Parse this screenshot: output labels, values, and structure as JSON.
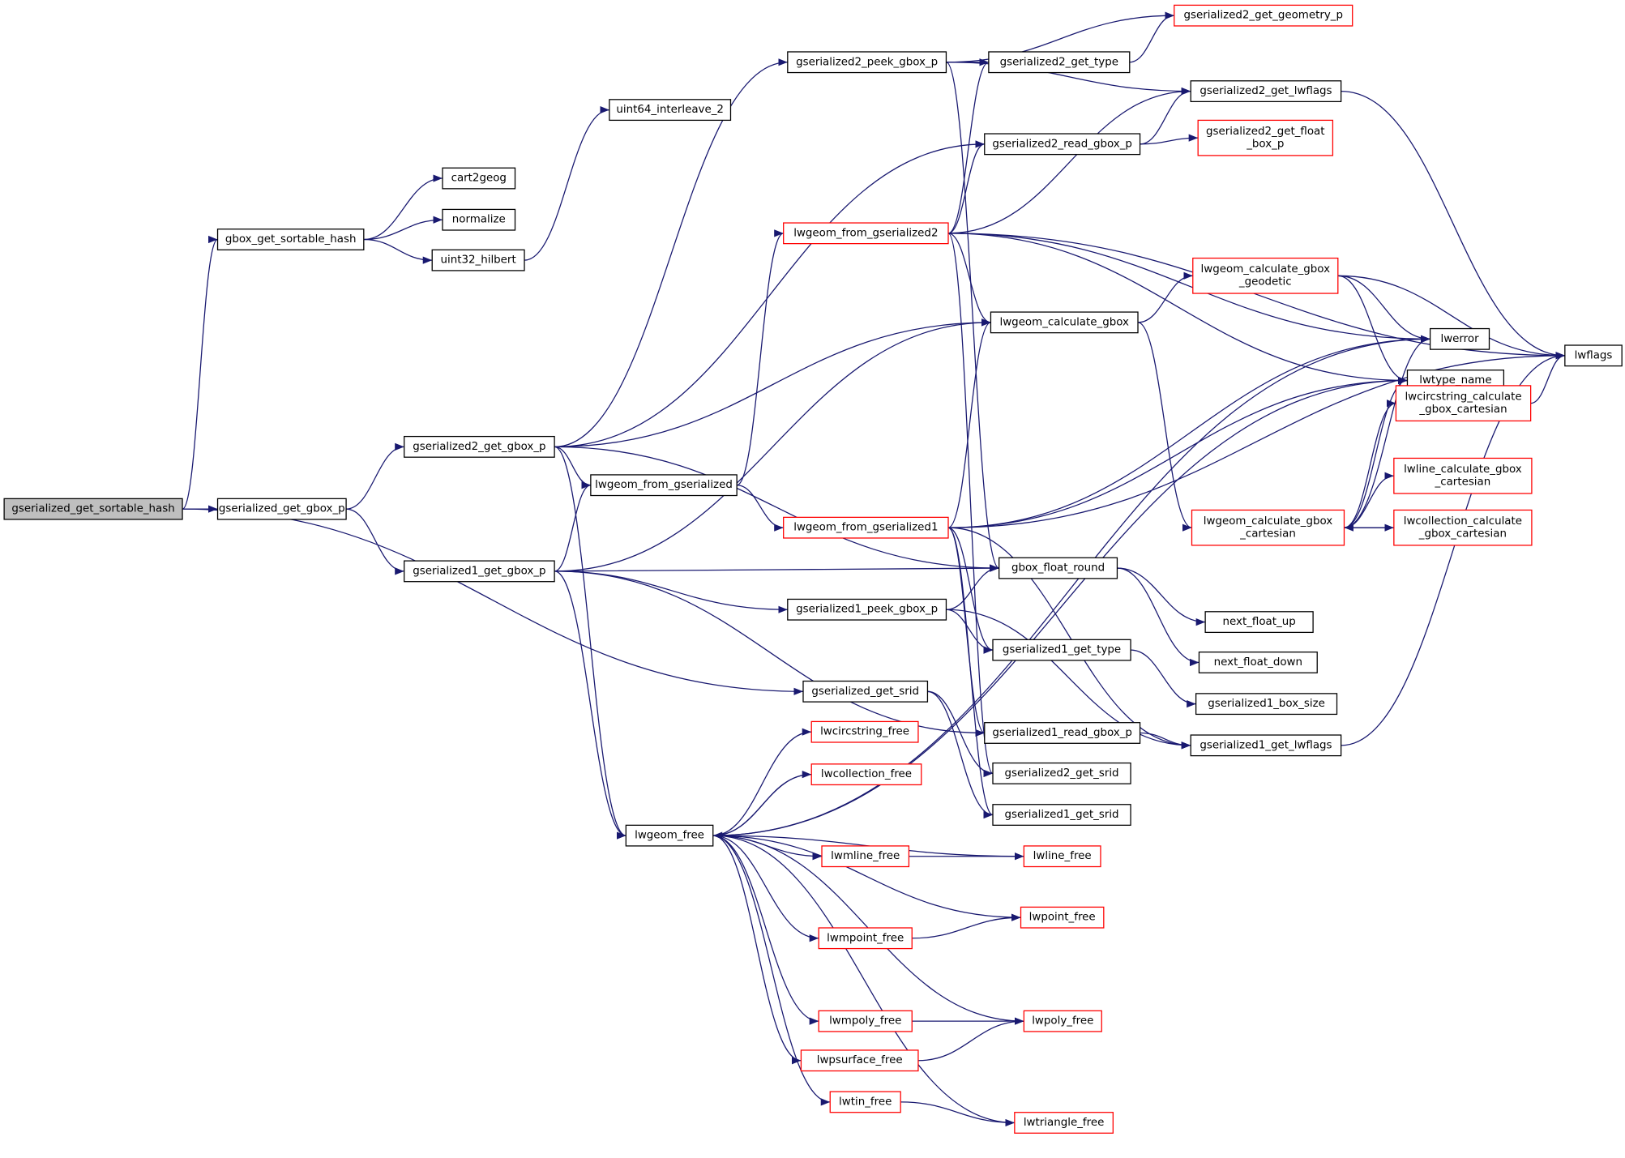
{
  "colors": {
    "edge": "#191970",
    "root_fill": "#bfbfbf",
    "truncated_border": "#ff0000",
    "node_border": "#000000"
  },
  "nodes": [
    {
      "id": "gserialized_get_sortable_hash",
      "lines": [
        "gserialized_get_sortable_hash"
      ],
      "style": "root"
    },
    {
      "id": "gserialized_get_gbox_p",
      "lines": [
        "gserialized_get_gbox_p"
      ],
      "style": "normal"
    },
    {
      "id": "gbox_get_sortable_hash",
      "lines": [
        "gbox_get_sortable_hash"
      ],
      "style": "normal"
    },
    {
      "id": "cart2geog",
      "lines": [
        "cart2geog"
      ],
      "style": "normal"
    },
    {
      "id": "normalize",
      "lines": [
        "normalize"
      ],
      "style": "normal"
    },
    {
      "id": "uint32_hilbert",
      "lines": [
        "uint32_hilbert"
      ],
      "style": "normal"
    },
    {
      "id": "uint64_interleave_2",
      "lines": [
        "uint64_interleave_2"
      ],
      "style": "normal"
    },
    {
      "id": "gserialized2_peek_gbox_p",
      "lines": [
        "gserialized2_peek_gbox_p"
      ],
      "style": "normal"
    },
    {
      "id": "gserialized2_get_geometry_p",
      "lines": [
        "gserialized2_get_geometry_p"
      ],
      "style": "truncated"
    },
    {
      "id": "gserialized2_get_type",
      "lines": [
        "gserialized2_get_type"
      ],
      "style": "normal"
    },
    {
      "id": "gserialized2_get_lwflags",
      "lines": [
        "gserialized2_get_lwflags"
      ],
      "style": "normal"
    },
    {
      "id": "gserialized2_read_gbox_p",
      "lines": [
        "gserialized2_read_gbox_p"
      ],
      "style": "normal"
    },
    {
      "id": "gserialized2_get_float_box_p",
      "lines": [
        "gserialized2_get_float",
        "_box_p"
      ],
      "style": "truncated"
    },
    {
      "id": "lwgeom_from_gserialized2",
      "lines": [
        "lwgeom_from_gserialized2"
      ],
      "style": "truncated"
    },
    {
      "id": "lwgeom_calculate_gbox",
      "lines": [
        "lwgeom_calculate_gbox"
      ],
      "style": "normal"
    },
    {
      "id": "lwgeom_calculate_gbox_geodetic",
      "lines": [
        "lwgeom_calculate_gbox",
        "_geodetic"
      ],
      "style": "truncated"
    },
    {
      "id": "lwerror",
      "lines": [
        "lwerror"
      ],
      "style": "normal"
    },
    {
      "id": "lwtype_name",
      "lines": [
        "lwtype_name"
      ],
      "style": "normal"
    },
    {
      "id": "lwflags",
      "lines": [
        "lwflags"
      ],
      "style": "normal"
    },
    {
      "id": "lwcircstring_calculate_gbox_cartesian",
      "lines": [
        "lwcircstring_calculate",
        "_gbox_cartesian"
      ],
      "style": "truncated"
    },
    {
      "id": "lwline_calculate_gbox_cartesian",
      "lines": [
        "lwline_calculate_gbox",
        "_cartesian"
      ],
      "style": "truncated"
    },
    {
      "id": "lwgeom_calculate_gbox_cartesian",
      "lines": [
        "lwgeom_calculate_gbox",
        "_cartesian"
      ],
      "style": "truncated"
    },
    {
      "id": "lwcollection_calculate_gbox_cartesian",
      "lines": [
        "lwcollection_calculate",
        "_gbox_cartesian"
      ],
      "style": "truncated"
    },
    {
      "id": "gserialized2_get_gbox_p",
      "lines": [
        "gserialized2_get_gbox_p"
      ],
      "style": "normal"
    },
    {
      "id": "lwgeom_from_gserialized",
      "lines": [
        "lwgeom_from_gserialized"
      ],
      "style": "normal"
    },
    {
      "id": "lwgeom_from_gserialized1",
      "lines": [
        "lwgeom_from_gserialized1"
      ],
      "style": "truncated"
    },
    {
      "id": "gserialized1_get_gbox_p",
      "lines": [
        "gserialized1_get_gbox_p"
      ],
      "style": "normal"
    },
    {
      "id": "gbox_float_round",
      "lines": [
        "gbox_float_round"
      ],
      "style": "normal"
    },
    {
      "id": "gserialized1_peek_gbox_p",
      "lines": [
        "gserialized1_peek_gbox_p"
      ],
      "style": "normal"
    },
    {
      "id": "next_float_up",
      "lines": [
        "next_float_up"
      ],
      "style": "normal"
    },
    {
      "id": "gserialized1_get_type",
      "lines": [
        "gserialized1_get_type"
      ],
      "style": "normal"
    },
    {
      "id": "next_float_down",
      "lines": [
        "next_float_down"
      ],
      "style": "normal"
    },
    {
      "id": "gserialized1_box_size",
      "lines": [
        "gserialized1_box_size"
      ],
      "style": "normal"
    },
    {
      "id": "gserialized_get_srid",
      "lines": [
        "gserialized_get_srid"
      ],
      "style": "normal"
    },
    {
      "id": "gserialized1_read_gbox_p",
      "lines": [
        "gserialized1_read_gbox_p"
      ],
      "style": "normal"
    },
    {
      "id": "gserialized1_get_lwflags",
      "lines": [
        "gserialized1_get_lwflags"
      ],
      "style": "normal"
    },
    {
      "id": "gserialized2_get_srid",
      "lines": [
        "gserialized2_get_srid"
      ],
      "style": "normal"
    },
    {
      "id": "gserialized1_get_srid",
      "lines": [
        "gserialized1_get_srid"
      ],
      "style": "normal"
    },
    {
      "id": "lwcircstring_free",
      "lines": [
        "lwcircstring_free"
      ],
      "style": "truncated"
    },
    {
      "id": "lwcollection_free",
      "lines": [
        "lwcollection_free"
      ],
      "style": "truncated"
    },
    {
      "id": "lwgeom_free",
      "lines": [
        "lwgeom_free"
      ],
      "style": "normal"
    },
    {
      "id": "lwmline_free",
      "lines": [
        "lwmline_free"
      ],
      "style": "truncated"
    },
    {
      "id": "lwline_free",
      "lines": [
        "lwline_free"
      ],
      "style": "truncated"
    },
    {
      "id": "lwpoint_free",
      "lines": [
        "lwpoint_free"
      ],
      "style": "truncated"
    },
    {
      "id": "lwmpoint_free",
      "lines": [
        "lwmpoint_free"
      ],
      "style": "truncated"
    },
    {
      "id": "lwpoly_free",
      "lines": [
        "lwpoly_free"
      ],
      "style": "truncated"
    },
    {
      "id": "lwmpoly_free",
      "lines": [
        "lwmpoly_free"
      ],
      "style": "truncated"
    },
    {
      "id": "lwpsurface_free",
      "lines": [
        "lwpsurface_free"
      ],
      "style": "truncated"
    },
    {
      "id": "lwtin_free",
      "lines": [
        "lwtin_free"
      ],
      "style": "truncated"
    },
    {
      "id": "lwtriangle_free",
      "lines": [
        "lwtriangle_free"
      ],
      "style": "truncated"
    }
  ],
  "edges": [
    [
      "gserialized_get_sortable_hash",
      "gbox_get_sortable_hash"
    ],
    [
      "gserialized_get_sortable_hash",
      "gserialized_get_gbox_p"
    ],
    [
      "gserialized_get_sortable_hash",
      "gserialized_get_srid"
    ],
    [
      "gbox_get_sortable_hash",
      "cart2geog"
    ],
    [
      "gbox_get_sortable_hash",
      "normalize"
    ],
    [
      "gbox_get_sortable_hash",
      "uint32_hilbert"
    ],
    [
      "uint32_hilbert",
      "uint64_interleave_2"
    ],
    [
      "gserialized_get_gbox_p",
      "gserialized2_get_gbox_p"
    ],
    [
      "gserialized_get_gbox_p",
      "gserialized1_get_gbox_p"
    ],
    [
      "gserialized2_get_gbox_p",
      "gserialized2_peek_gbox_p"
    ],
    [
      "gserialized2_get_gbox_p",
      "gserialized2_read_gbox_p"
    ],
    [
      "gserialized2_get_gbox_p",
      "lwgeom_calculate_gbox"
    ],
    [
      "gserialized2_get_gbox_p",
      "lwgeom_from_gserialized"
    ],
    [
      "gserialized2_get_gbox_p",
      "lwgeom_free"
    ],
    [
      "gserialized2_get_gbox_p",
      "gbox_float_round"
    ],
    [
      "gserialized1_get_gbox_p",
      "lwgeom_from_gserialized"
    ],
    [
      "gserialized1_get_gbox_p",
      "lwgeom_calculate_gbox"
    ],
    [
      "gserialized1_get_gbox_p",
      "gbox_float_round"
    ],
    [
      "gserialized1_get_gbox_p",
      "gserialized1_peek_gbox_p"
    ],
    [
      "gserialized1_get_gbox_p",
      "gserialized1_read_gbox_p"
    ],
    [
      "gserialized1_get_gbox_p",
      "lwgeom_free"
    ],
    [
      "lwgeom_from_gserialized",
      "lwgeom_from_gserialized2"
    ],
    [
      "lwgeom_from_gserialized",
      "lwgeom_from_gserialized1"
    ],
    [
      "gserialized2_peek_gbox_p",
      "gserialized2_get_geometry_p"
    ],
    [
      "gserialized2_peek_gbox_p",
      "gserialized2_get_type"
    ],
    [
      "gserialized2_peek_gbox_p",
      "gserialized2_get_lwflags"
    ],
    [
      "gserialized2_peek_gbox_p",
      "gbox_float_round"
    ],
    [
      "gserialized2_get_type",
      "gserialized2_get_geometry_p"
    ],
    [
      "gserialized2_get_lwflags",
      "lwflags"
    ],
    [
      "gserialized2_read_gbox_p",
      "gserialized2_get_lwflags"
    ],
    [
      "gserialized2_read_gbox_p",
      "gserialized2_get_float_box_p"
    ],
    [
      "lwgeom_from_gserialized2",
      "gserialized2_get_type"
    ],
    [
      "lwgeom_from_gserialized2",
      "gserialized2_get_lwflags"
    ],
    [
      "lwgeom_from_gserialized2",
      "gserialized2_read_gbox_p"
    ],
    [
      "lwgeom_from_gserialized2",
      "lwgeom_calculate_gbox"
    ],
    [
      "lwgeom_from_gserialized2",
      "lwerror"
    ],
    [
      "lwgeom_from_gserialized2",
      "lwflags"
    ],
    [
      "lwgeom_from_gserialized2",
      "lwtype_name"
    ],
    [
      "lwgeom_from_gserialized2",
      "gserialized2_get_srid"
    ],
    [
      "lwgeom_calculate_gbox",
      "lwgeom_calculate_gbox_geodetic"
    ],
    [
      "lwgeom_calculate_gbox",
      "lwgeom_calculate_gbox_cartesian"
    ],
    [
      "lwgeom_calculate_gbox_geodetic",
      "lwerror"
    ],
    [
      "lwgeom_calculate_gbox_geodetic",
      "lwtype_name"
    ],
    [
      "lwgeom_calculate_gbox_geodetic",
      "lwflags"
    ],
    [
      "lwgeom_calculate_gbox_cartesian",
      "lwerror"
    ],
    [
      "lwgeom_calculate_gbox_cartesian",
      "lwtype_name"
    ],
    [
      "lwgeom_calculate_gbox_cartesian",
      "lwcircstring_calculate_gbox_cartesian"
    ],
    [
      "lwgeom_calculate_gbox_cartesian",
      "lwline_calculate_gbox_cartesian"
    ],
    [
      "lwgeom_calculate_gbox_cartesian",
      "lwcollection_calculate_gbox_cartesian"
    ],
    [
      "lwcollection_calculate_gbox_cartesian",
      "lwgeom_calculate_gbox_cartesian"
    ],
    [
      "lwcircstring_calculate_gbox_cartesian",
      "lwflags"
    ],
    [
      "lwgeom_from_gserialized1",
      "lwgeom_calculate_gbox"
    ],
    [
      "lwgeom_from_gserialized1",
      "lwtype_name"
    ],
    [
      "lwgeom_from_gserialized1",
      "lwerror"
    ],
    [
      "lwgeom_from_gserialized1",
      "lwflags"
    ],
    [
      "lwgeom_from_gserialized1",
      "gserialized1_get_type"
    ],
    [
      "lwgeom_from_gserialized1",
      "gserialized1_read_gbox_p"
    ],
    [
      "lwgeom_from_gserialized1",
      "gserialized1_get_lwflags"
    ],
    [
      "lwgeom_from_gserialized1",
      "gserialized1_get_srid"
    ],
    [
      "gserialized1_peek_gbox_p",
      "gbox_float_round"
    ],
    [
      "gserialized1_peek_gbox_p",
      "gserialized1_get_type"
    ],
    [
      "gserialized1_peek_gbox_p",
      "gserialized1_get_lwflags"
    ],
    [
      "gbox_float_round",
      "next_float_up"
    ],
    [
      "gbox_float_round",
      "next_float_down"
    ],
    [
      "gserialized1_get_type",
      "gserialized1_box_size"
    ],
    [
      "gserialized1_read_gbox_p",
      "gserialized1_get_lwflags"
    ],
    [
      "gserialized1_get_lwflags",
      "lwflags"
    ],
    [
      "gserialized_get_srid",
      "gserialized2_get_srid"
    ],
    [
      "gserialized_get_srid",
      "gserialized1_get_srid"
    ],
    [
      "lwgeom_free",
      "lwerror"
    ],
    [
      "lwgeom_free",
      "lwtype_name"
    ],
    [
      "lwgeom_free",
      "lwcircstring_free"
    ],
    [
      "lwgeom_free",
      "lwcollection_free"
    ],
    [
      "lwgeom_free",
      "lwmline_free"
    ],
    [
      "lwgeom_free",
      "lwline_free"
    ],
    [
      "lwgeom_free",
      "lwpoint_free"
    ],
    [
      "lwgeom_free",
      "lwmpoint_free"
    ],
    [
      "lwgeom_free",
      "lwpoly_free"
    ],
    [
      "lwgeom_free",
      "lwmpoly_free"
    ],
    [
      "lwgeom_free",
      "lwpsurface_free"
    ],
    [
      "lwgeom_free",
      "lwtin_free"
    ],
    [
      "lwgeom_free",
      "lwtriangle_free"
    ],
    [
      "lwcollection_free",
      "lwgeom_free"
    ],
    [
      "lwmline_free",
      "lwline_free"
    ],
    [
      "lwmpoint_free",
      "lwpoint_free"
    ],
    [
      "lwmpoly_free",
      "lwpoly_free"
    ],
    [
      "lwpsurface_free",
      "lwpoly_free"
    ],
    [
      "lwtin_free",
      "lwtriangle_free"
    ]
  ]
}
